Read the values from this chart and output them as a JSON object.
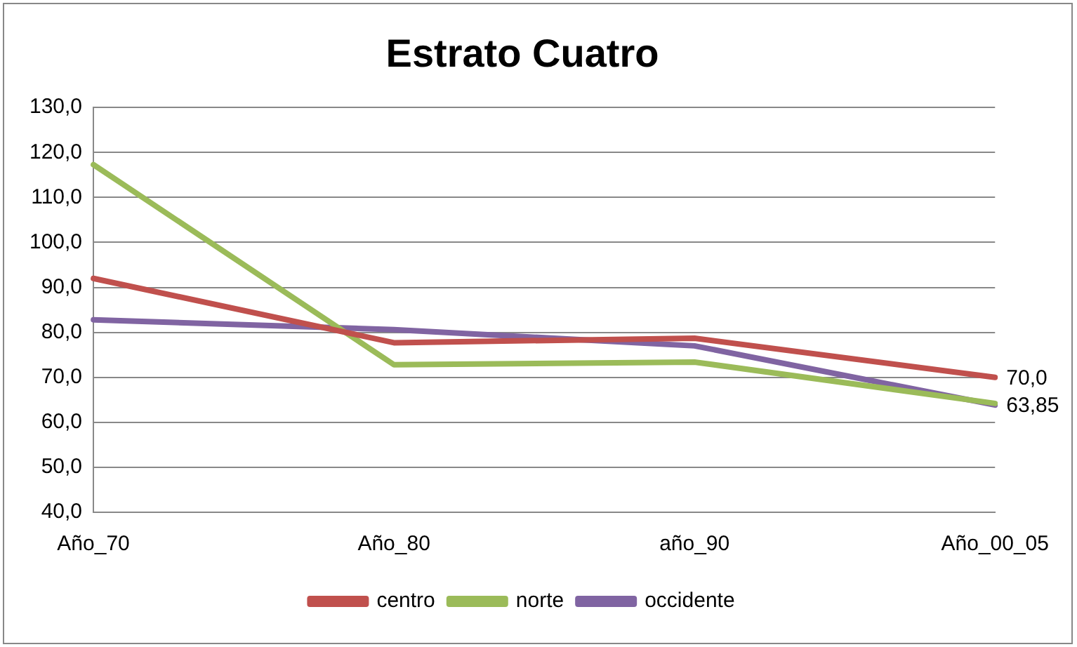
{
  "chart_data": {
    "type": "line",
    "title": "Estrato Cuatro",
    "categories": [
      "Año_70",
      "Año_80",
      "año_90",
      "Año_00_05"
    ],
    "series": [
      {
        "name": "centro",
        "color": "#c0504d",
        "values": [
          92.0,
          77.7,
          78.7,
          70.0
        ],
        "value_labels": [
          null,
          null,
          null,
          "70,0"
        ]
      },
      {
        "name": "norte",
        "color": "#9bbb59",
        "values": [
          117.3,
          72.8,
          73.4,
          64.2
        ]
      },
      {
        "name": "occidente",
        "color": "#8064a2",
        "values": [
          82.8,
          80.6,
          77.0,
          63.85
        ],
        "value_labels": [
          null,
          null,
          null,
          "63,85"
        ]
      }
    ],
    "ylim": [
      40,
      130
    ],
    "yticks": [
      {
        "value": 40,
        "label": "40,0"
      },
      {
        "value": 50,
        "label": "50,0"
      },
      {
        "value": 60,
        "label": "60,0"
      },
      {
        "value": 70,
        "label": "70,0"
      },
      {
        "value": 80,
        "label": "80,0"
      },
      {
        "value": 90,
        "label": "90,0"
      },
      {
        "value": 100,
        "label": "100,0"
      },
      {
        "value": 110,
        "label": "110,0"
      },
      {
        "value": 120,
        "label": "120,0"
      },
      {
        "value": 130,
        "label": "130,0"
      }
    ],
    "grid": "y",
    "legend": "bottom",
    "marker": "none",
    "line_style": "solid"
  }
}
